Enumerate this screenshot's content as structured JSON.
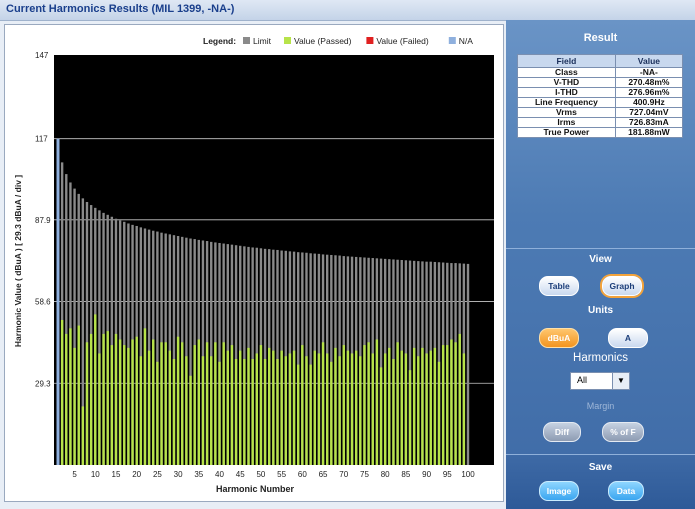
{
  "window": {
    "title": "Current Harmonics Results (MIL 1399, -NA-)"
  },
  "legend": {
    "title": "Legend:",
    "items": [
      {
        "label": "Limit",
        "color": "#8a8a8a"
      },
      {
        "label": "Value (Passed)",
        "color": "#b7e34a"
      },
      {
        "label": "Value (Failed)",
        "color": "#e02020"
      },
      {
        "label": "N/A",
        "color": "#8fb0de"
      }
    ]
  },
  "chart_data": {
    "type": "bar",
    "xlabel": "Harmonic Number",
    "ylabel": "Harmonic Value ( dBuA ) [ 29.3 dBuA / div ]",
    "ylim": [
      0,
      147
    ],
    "yticks": [
      "147",
      "117",
      "87.9",
      "58.6",
      "29.3"
    ],
    "yticks_values": [
      147,
      117,
      87.9,
      58.6,
      29.3
    ],
    "xticks": [
      5,
      10,
      15,
      20,
      25,
      30,
      35,
      40,
      45,
      50,
      55,
      60,
      65,
      70,
      75,
      80,
      85,
      90,
      95,
      100
    ],
    "grid": true,
    "background": "#000000",
    "first_harmonic_na_value": 117,
    "series": [
      {
        "name": "Limit",
        "values": [
          115.8,
          108.5,
          104.3,
          101.3,
          99.1,
          97.2,
          95.6,
          94.3,
          93.2,
          92.2,
          91.3,
          90.4,
          89.7,
          89.0,
          88.3,
          87.7,
          87.2,
          86.6,
          86.1,
          85.7,
          85.2,
          84.8,
          84.4,
          84.0,
          83.7,
          83.3,
          83.0,
          82.7,
          82.4,
          82.1,
          81.8,
          81.5,
          81.2,
          81.0,
          80.7,
          80.5,
          80.3,
          80.0,
          79.8,
          79.6,
          79.4,
          79.2,
          79.0,
          78.8,
          78.6,
          78.4,
          78.2,
          78.0,
          77.9,
          77.7,
          77.5,
          77.4,
          77.2,
          77.1,
          76.9,
          76.8,
          76.6,
          76.5,
          76.3,
          76.2,
          76.1,
          75.9,
          75.8,
          75.7,
          75.5,
          75.4,
          75.3,
          75.2,
          75.1,
          74.9,
          74.8,
          74.7,
          74.6,
          74.5,
          74.4,
          74.3,
          74.2,
          74.1,
          74.0,
          73.9,
          73.8,
          73.7,
          73.6,
          73.5,
          73.4,
          73.3,
          73.2,
          73.1,
          73.0,
          72.9,
          72.9,
          72.8,
          72.7,
          72.6,
          72.5,
          72.4,
          72.4,
          72.3,
          72.2,
          72.1
        ]
      },
      {
        "name": "Value (Passed)",
        "values": [
          0,
          52,
          47,
          49,
          42,
          50,
          21,
          44,
          47,
          54,
          40,
          47,
          48,
          43,
          47,
          45,
          43,
          42,
          45,
          46,
          39,
          49,
          41,
          45,
          37,
          44,
          44,
          41,
          38,
          46,
          44,
          39,
          32,
          43,
          45,
          39,
          44,
          39,
          44,
          37,
          44,
          41,
          43,
          38,
          41,
          38,
          42,
          38,
          40,
          43,
          38,
          42,
          41,
          38,
          41,
          39,
          40,
          41,
          36,
          43,
          39,
          36,
          41,
          40,
          44,
          40,
          37,
          42,
          39,
          43,
          41,
          40,
          41,
          39,
          43,
          44,
          40,
          45,
          35,
          40,
          42,
          38,
          44,
          41,
          40,
          34,
          42,
          39,
          42,
          40,
          41,
          42,
          37,
          43,
          43,
          45,
          44,
          47,
          40,
          0
        ]
      }
    ]
  },
  "result": {
    "title": "Result",
    "headers": [
      "Field",
      "Value"
    ],
    "rows": [
      [
        "Class",
        "-NA-"
      ],
      [
        "V-THD",
        "270.48m%"
      ],
      [
        "I-THD",
        "276.96m%"
      ],
      [
        "Line Frequency",
        "400.9Hz"
      ],
      [
        "Vrms",
        "727.04mV"
      ],
      [
        "Irms",
        "726.83mA"
      ],
      [
        "True Power",
        "181.88mW"
      ]
    ]
  },
  "view": {
    "title": "View",
    "table_label": "Table",
    "graph_label": "Graph"
  },
  "units": {
    "title": "Units",
    "dbua_label": "dBuA",
    "a_label": "A"
  },
  "harmonics": {
    "title": "Harmonics",
    "selected": "All"
  },
  "margin": {
    "title": "Margin",
    "diff_label": "Diff",
    "pct_label": "% of F"
  },
  "save": {
    "title": "Save",
    "image_label": "Image",
    "data_label": "Data"
  }
}
